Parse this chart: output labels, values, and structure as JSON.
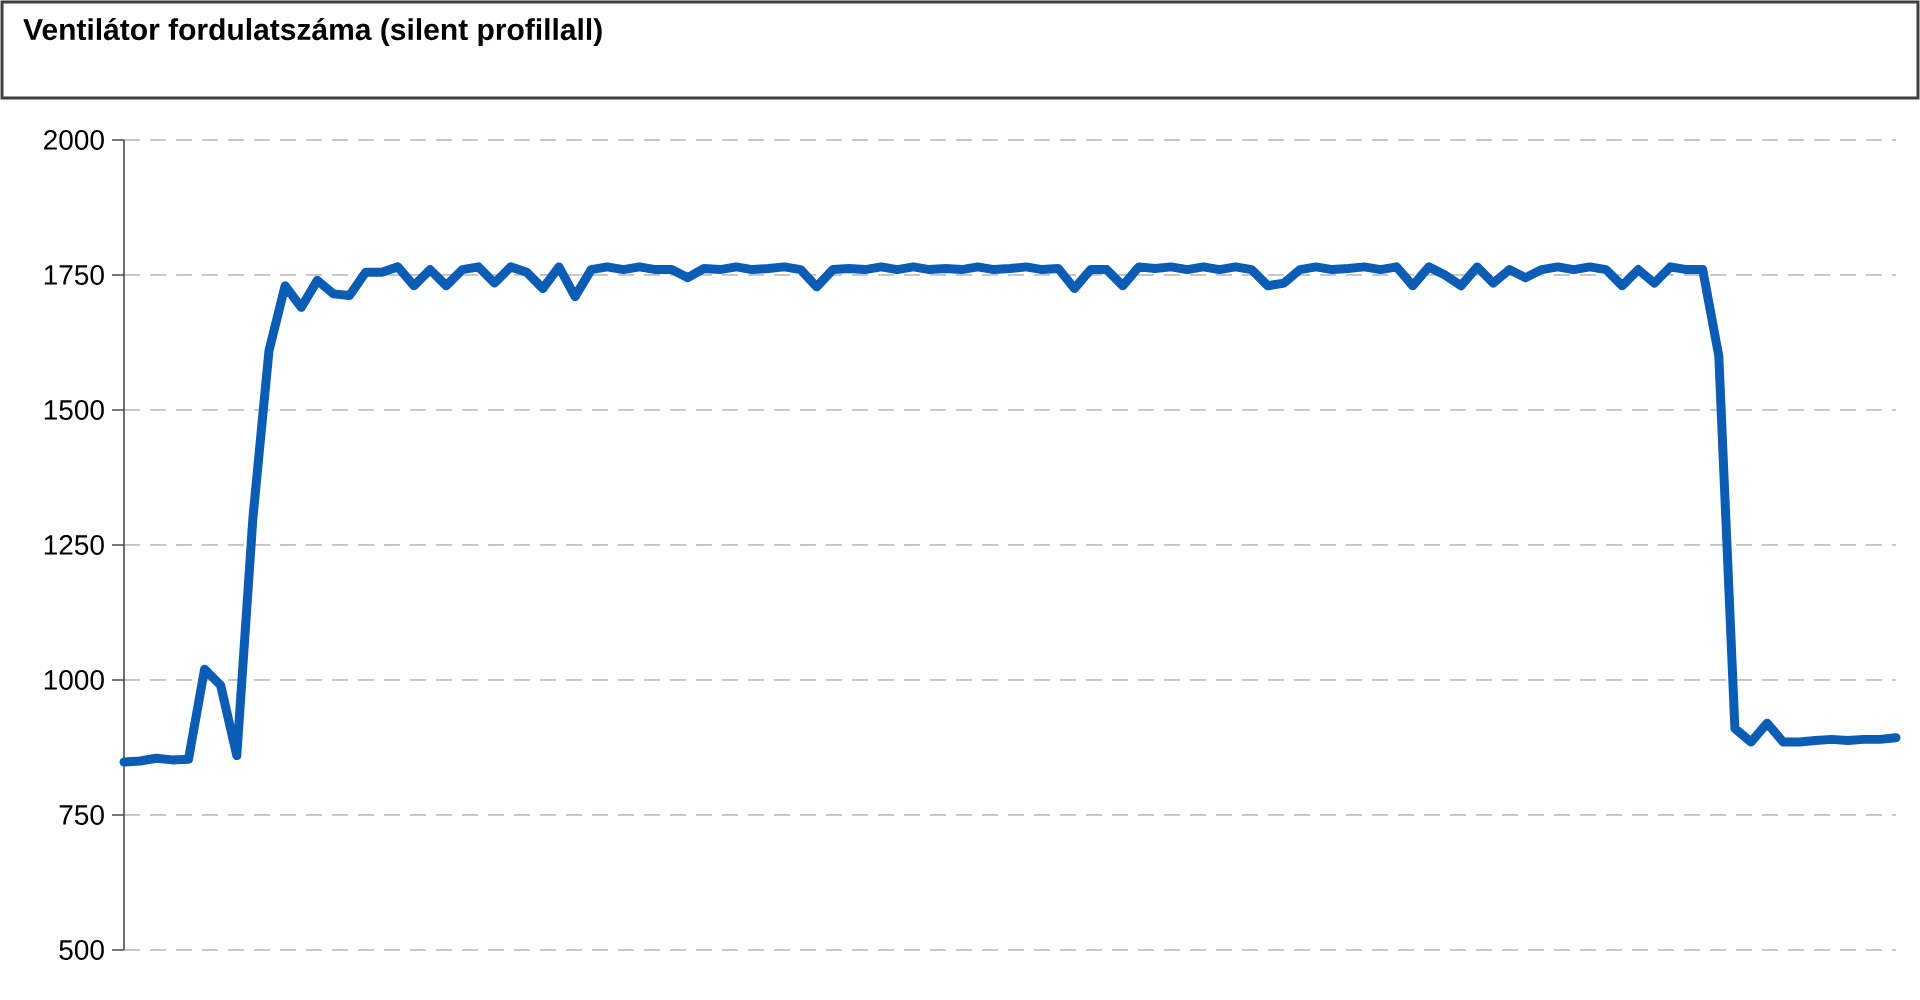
{
  "chart_data": {
    "type": "line",
    "title": "Ventilátor fordulatszáma (silent profillall)",
    "categories": [
      null,
      null,
      null,
      null,
      null,
      null,
      null,
      null,
      null,
      null,
      null,
      null,
      null,
      null,
      null,
      null,
      null,
      null,
      null,
      null,
      null,
      null,
      null,
      null,
      null,
      null,
      null,
      null,
      null,
      null,
      null,
      null,
      null,
      null,
      null,
      null,
      null,
      null,
      null,
      null,
      null,
      null,
      null,
      null,
      null,
      null,
      null,
      null,
      null,
      null,
      null,
      null,
      null,
      null,
      null,
      null,
      null,
      null,
      null,
      null,
      null,
      null,
      null,
      null,
      null,
      null,
      null,
      null,
      null,
      null,
      null,
      null,
      null,
      null,
      null,
      null,
      null,
      null,
      null,
      null,
      null,
      null,
      null,
      null,
      null,
      null,
      null,
      null,
      null,
      null,
      null,
      null,
      null,
      null,
      null,
      null,
      null,
      null,
      null,
      null,
      null,
      null,
      null,
      null,
      null,
      null,
      null,
      null,
      null,
      null,
      null
    ],
    "series": [
      {
        "color": "#0a5cb4",
        "values": [
          848,
          850,
          855,
          852,
          853,
          1020,
          990,
          860,
          1300,
          1610,
          1730,
          1690,
          1740,
          1715,
          1712,
          1755,
          1755,
          1765,
          1730,
          1760,
          1730,
          1760,
          1765,
          1735,
          1765,
          1755,
          1725,
          1765,
          1710,
          1760,
          1765,
          1760,
          1765,
          1760,
          1760,
          1745,
          1762,
          1760,
          1765,
          1760,
          1762,
          1765,
          1760,
          1728,
          1760,
          1762,
          1760,
          1765,
          1760,
          1765,
          1760,
          1762,
          1760,
          1765,
          1760,
          1762,
          1765,
          1760,
          1762,
          1725,
          1760,
          1760,
          1730,
          1765,
          1762,
          1765,
          1760,
          1765,
          1760,
          1765,
          1760,
          1730,
          1735,
          1760,
          1765,
          1760,
          1762,
          1765,
          1760,
          1765,
          1730,
          1765,
          1750,
          1730,
          1765,
          1735,
          1760,
          1745,
          1760,
          1765,
          1760,
          1765,
          1760,
          1730,
          1760,
          1735,
          1765,
          1760,
          1760,
          1600,
          910,
          885,
          920,
          885,
          885,
          888,
          890,
          888,
          890,
          890,
          893
        ]
      }
    ],
    "ylim": [
      500,
      2000
    ],
    "yticks": [
      500,
      750,
      1000,
      1250,
      1500,
      1750,
      2000
    ],
    "grid": "y",
    "tick_labels": "y",
    "line_style": "solid"
  }
}
